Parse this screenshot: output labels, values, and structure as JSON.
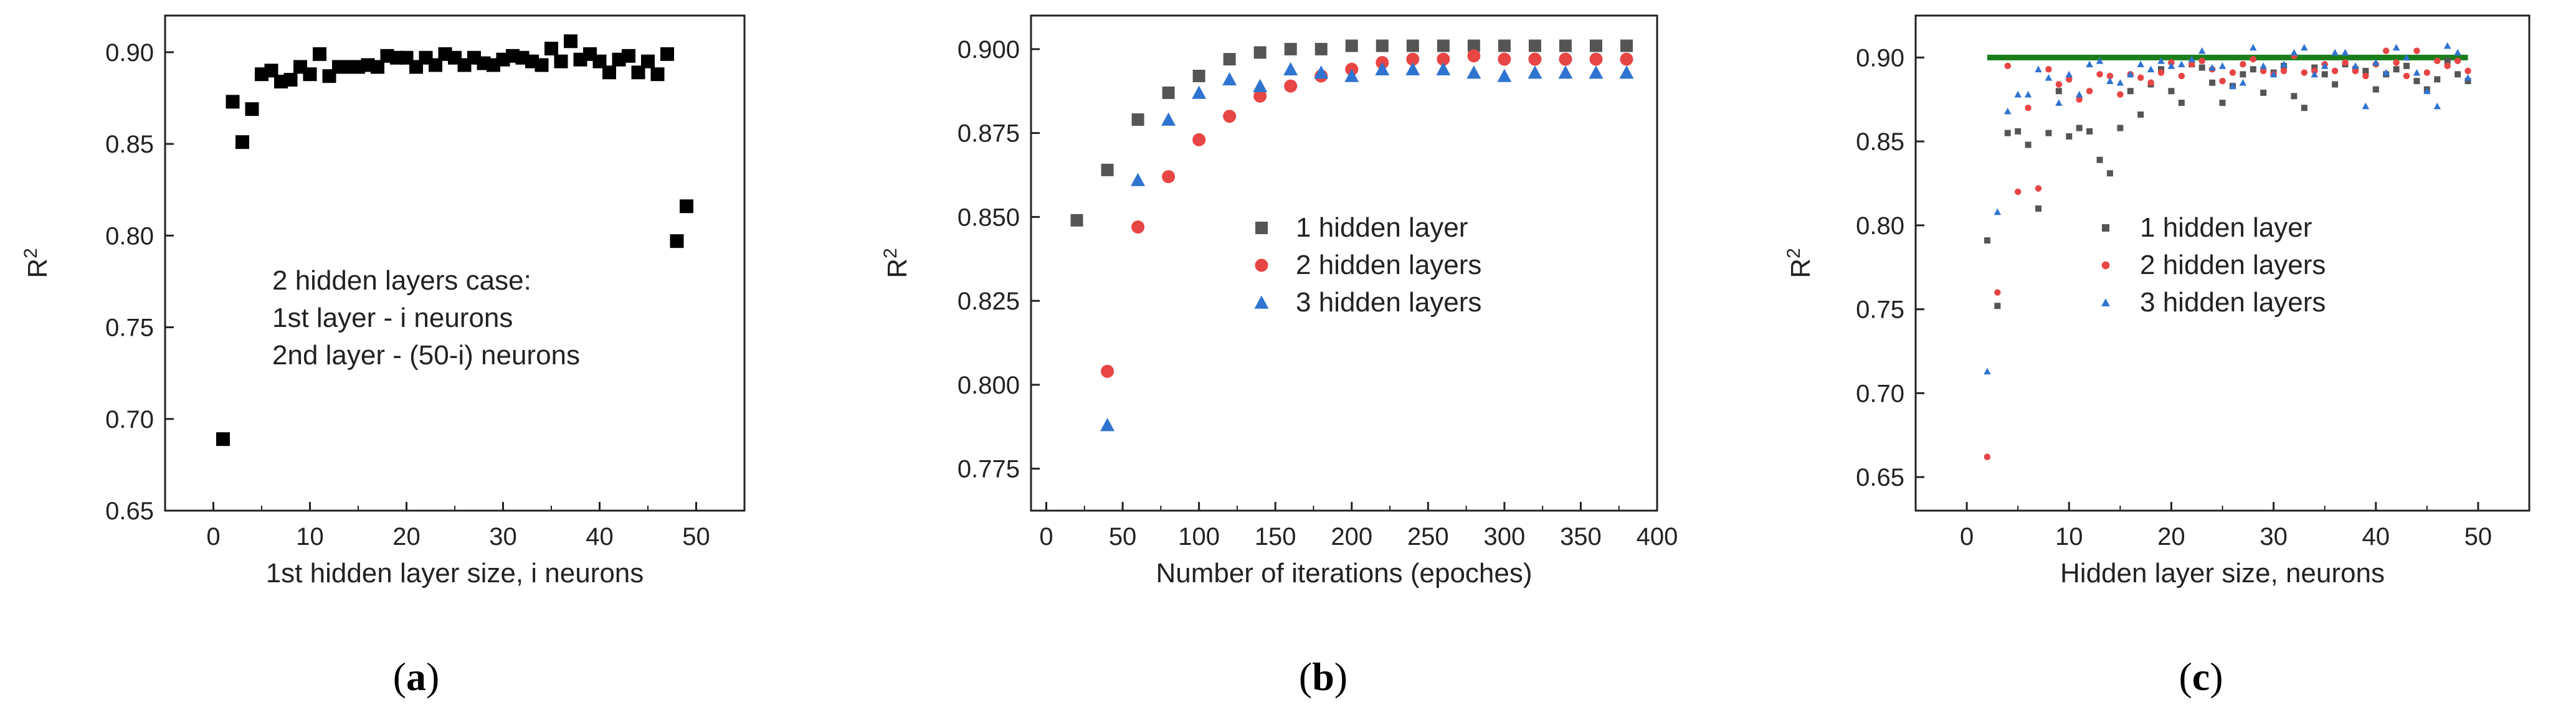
{
  "colors": {
    "series_1": "#555555",
    "series_2": "#e84545",
    "series_3": "#2f74d0",
    "panel_a_marker": "#000000",
    "reference_line": "#1a7f1a",
    "axis": "#222222"
  },
  "captions": [
    {
      "pre": "(",
      "letter": "a",
      "post": ")"
    },
    {
      "pre": "(",
      "letter": "b",
      "post": ")"
    },
    {
      "pre": "(",
      "letter": "c",
      "post": ")"
    }
  ],
  "chart_data": [
    {
      "id": "a",
      "type": "scatter",
      "title": "",
      "xlabel": "1st hidden layer size, i neurons",
      "ylabel": "R",
      "ylabel_sup": "2",
      "xlim": [
        -5,
        55
      ],
      "ylim": [
        0.65,
        0.92
      ],
      "xticks": [
        0,
        10,
        20,
        30,
        40,
        50
      ],
      "yticks": [
        0.65,
        0.7,
        0.75,
        0.8,
        0.85,
        0.9
      ],
      "ytick_decimals": 2,
      "grid": false,
      "annotation_lines": [
        "2 hidden layers case:",
        "1st layer - i neurons",
        "2nd layer - (50-i) neurons"
      ],
      "series": [
        {
          "name": "2 hidden layers case",
          "marker": "square",
          "x": [
            1,
            2,
            3,
            4,
            5,
            6,
            7,
            8,
            9,
            10,
            11,
            12,
            13,
            14,
            15,
            16,
            17,
            18,
            19,
            20,
            21,
            22,
            23,
            24,
            25,
            26,
            27,
            28,
            29,
            30,
            31,
            32,
            33,
            34,
            35,
            36,
            37,
            38,
            39,
            40,
            41,
            42,
            43,
            44,
            45,
            46,
            47,
            48,
            49
          ],
          "y": [
            0.689,
            0.873,
            0.851,
            0.869,
            0.888,
            0.89,
            0.884,
            0.885,
            0.892,
            0.888,
            0.899,
            0.887,
            0.892,
            0.892,
            0.892,
            0.893,
            0.892,
            0.898,
            0.897,
            0.897,
            0.892,
            0.897,
            0.893,
            0.899,
            0.897,
            0.893,
            0.897,
            0.894,
            0.893,
            0.896,
            0.898,
            0.897,
            0.895,
            0.893,
            0.902,
            0.895,
            0.906,
            0.896,
            0.899,
            0.895,
            0.889,
            0.896,
            0.898,
            0.889,
            0.895,
            0.888,
            0.899,
            0.797,
            0.816
          ]
        }
      ]
    },
    {
      "id": "b",
      "type": "scatter",
      "title": "",
      "xlabel": "Number of iterations (epoches)",
      "ylabel": "R",
      "ylabel_sup": "2",
      "xlim": [
        -10,
        400
      ],
      "ylim": [
        0.7625,
        0.91
      ],
      "xticks": [
        0,
        50,
        100,
        150,
        200,
        250,
        300,
        350,
        400
      ],
      "yticks": [
        0.775,
        0.8,
        0.825,
        0.85,
        0.875,
        0.9
      ],
      "ytick_decimals": 3,
      "grid": false,
      "legend": "center-right",
      "series": [
        {
          "name": "1 hidden layer",
          "marker": "square",
          "color_key": "series_1",
          "x": [
            20,
            40,
            60,
            80,
            100,
            120,
            140,
            160,
            180,
            200,
            220,
            240,
            260,
            280,
            300,
            320,
            340,
            360,
            380
          ],
          "y": [
            0.849,
            0.864,
            0.879,
            0.887,
            0.892,
            0.897,
            0.899,
            0.9,
            0.9,
            0.901,
            0.901,
            0.901,
            0.901,
            0.901,
            0.901,
            0.901,
            0.901,
            0.901,
            0.901
          ]
        },
        {
          "name": "2 hidden layers",
          "marker": "circle",
          "color_key": "series_2",
          "x": [
            40,
            60,
            80,
            100,
            120,
            140,
            160,
            180,
            200,
            220,
            240,
            260,
            280,
            300,
            320,
            340,
            360,
            380
          ],
          "y": [
            0.804,
            0.847,
            0.862,
            0.873,
            0.88,
            0.886,
            0.889,
            0.892,
            0.894,
            0.896,
            0.897,
            0.897,
            0.898,
            0.897,
            0.897,
            0.897,
            0.897,
            0.897
          ]
        },
        {
          "name": "3 hidden layers",
          "marker": "triangle",
          "color_key": "series_3",
          "x": [
            40,
            60,
            80,
            100,
            120,
            140,
            160,
            180,
            200,
            220,
            240,
            260,
            280,
            300,
            320,
            340,
            360,
            380
          ],
          "y": [
            0.788,
            0.861,
            0.879,
            0.887,
            0.891,
            0.889,
            0.894,
            0.893,
            0.892,
            0.894,
            0.894,
            0.894,
            0.893,
            0.892,
            0.893,
            0.893,
            0.893,
            0.893
          ]
        }
      ]
    },
    {
      "id": "c",
      "type": "scatter",
      "title": "",
      "xlabel": "Hidden layer size, neurons",
      "ylabel": "R",
      "ylabel_sup": "2",
      "xlim": [
        -5,
        55
      ],
      "ylim": [
        0.63,
        0.925
      ],
      "xticks": [
        0,
        10,
        20,
        30,
        40,
        50
      ],
      "yticks": [
        0.65,
        0.7,
        0.75,
        0.8,
        0.85,
        0.9
      ],
      "ytick_decimals": 2,
      "grid": false,
      "legend": "center-right",
      "reference_line": {
        "x": [
          2,
          49
        ],
        "y": 0.9
      },
      "series": [
        {
          "name": "1 hidden layer",
          "marker": "square",
          "color_key": "series_1",
          "x": [
            2,
            3,
            4,
            5,
            6,
            7,
            8,
            9,
            10,
            11,
            12,
            13,
            14,
            15,
            16,
            17,
            18,
            19,
            20,
            21,
            22,
            23,
            24,
            25,
            26,
            27,
            28,
            29,
            30,
            31,
            32,
            33,
            34,
            35,
            36,
            37,
            38,
            39,
            40,
            41,
            42,
            43,
            44,
            45,
            46,
            47,
            48,
            49
          ],
          "y": [
            0.791,
            0.752,
            0.855,
            0.856,
            0.848,
            0.81,
            0.855,
            0.88,
            0.853,
            0.858,
            0.856,
            0.839,
            0.831,
            0.858,
            0.88,
            0.866,
            0.884,
            0.893,
            0.88,
            0.873,
            0.896,
            0.894,
            0.885,
            0.873,
            0.883,
            0.89,
            0.893,
            0.879,
            0.891,
            0.895,
            0.877,
            0.87,
            0.894,
            0.89,
            0.884,
            0.896,
            0.893,
            0.892,
            0.881,
            0.89,
            0.893,
            0.895,
            0.886,
            0.881,
            0.887,
            0.898,
            0.89,
            0.886
          ]
        },
        {
          "name": "2 hidden layers",
          "marker": "circle",
          "color_key": "series_2",
          "x": [
            2,
            3,
            4,
            5,
            6,
            7,
            8,
            9,
            10,
            11,
            12,
            13,
            14,
            15,
            16,
            17,
            18,
            19,
            20,
            21,
            22,
            23,
            24,
            25,
            26,
            27,
            28,
            29,
            30,
            31,
            32,
            33,
            34,
            35,
            36,
            37,
            38,
            39,
            40,
            41,
            42,
            43,
            44,
            45,
            46,
            47,
            48,
            49
          ],
          "y": [
            0.662,
            0.76,
            0.895,
            0.82,
            0.87,
            0.822,
            0.893,
            0.884,
            0.887,
            0.875,
            0.88,
            0.89,
            0.889,
            0.878,
            0.89,
            0.888,
            0.885,
            0.891,
            0.897,
            0.889,
            0.896,
            0.898,
            0.893,
            0.886,
            0.891,
            0.896,
            0.899,
            0.892,
            0.89,
            0.892,
            0.901,
            0.891,
            0.892,
            0.896,
            0.892,
            0.897,
            0.892,
            0.889,
            0.896,
            0.904,
            0.897,
            0.889,
            0.904,
            0.891,
            0.898,
            0.895,
            0.898,
            0.892
          ]
        },
        {
          "name": "3 hidden layers",
          "marker": "triangle",
          "color_key": "series_3",
          "x": [
            2,
            3,
            4,
            5,
            6,
            7,
            8,
            9,
            10,
            11,
            12,
            13,
            14,
            15,
            16,
            17,
            18,
            19,
            20,
            21,
            22,
            23,
            24,
            25,
            26,
            27,
            28,
            29,
            30,
            31,
            32,
            33,
            34,
            35,
            36,
            37,
            38,
            39,
            40,
            41,
            42,
            43,
            44,
            45,
            46,
            47,
            48,
            49
          ],
          "y": [
            0.713,
            0.808,
            0.868,
            0.878,
            0.878,
            0.893,
            0.888,
            0.873,
            0.89,
            0.878,
            0.896,
            0.898,
            0.886,
            0.885,
            0.89,
            0.896,
            0.893,
            0.898,
            0.895,
            0.896,
            0.899,
            0.904,
            0.894,
            0.895,
            0.883,
            0.885,
            0.906,
            0.895,
            0.89,
            0.896,
            0.903,
            0.906,
            0.89,
            0.895,
            0.903,
            0.903,
            0.895,
            0.871,
            0.897,
            0.891,
            0.906,
            0.9,
            0.891,
            0.88,
            0.871,
            0.907,
            0.903,
            0.888
          ]
        }
      ]
    }
  ]
}
